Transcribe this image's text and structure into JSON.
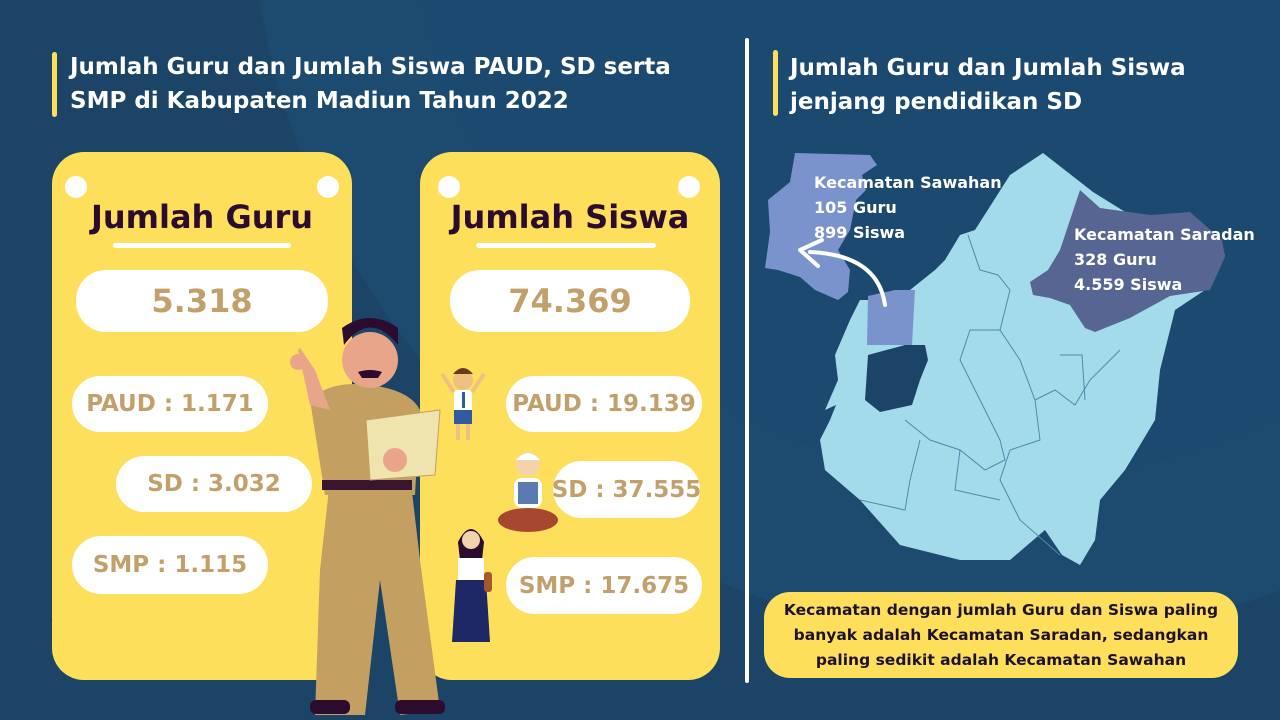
{
  "colors": {
    "background": "#1b4467",
    "card": "#fddf5c",
    "value_text": "#c2a06b",
    "map_region": "#a3dbea",
    "sawahan": "#7b93cc",
    "saradan": "#566591"
  },
  "left": {
    "title_line1": "Jumlah Guru dan Jumlah Siswa PAUD, SD serta",
    "title_line2": "SMP di Kabupaten Madiun Tahun 2022",
    "guru": {
      "title": "Jumlah Guru",
      "total": "5.318",
      "paud": "PAUD : 1.171",
      "sd": "SD : 3.032",
      "smp": "SMP : 1.115"
    },
    "siswa": {
      "title": "Jumlah Siswa",
      "total": "74.369",
      "paud": "PAUD : 19.139",
      "sd": "SD : 37.555",
      "smp": "SMP : 17.675"
    }
  },
  "right": {
    "title_line1": "Jumlah Guru dan Jumlah Siswa",
    "title_line2": "jenjang pendidikan SD",
    "sawahan": {
      "name": "Kecamatan Sawahan",
      "guru": "105 Guru",
      "siswa": "899 Siswa"
    },
    "saradan": {
      "name": "Kecamatan Saradan",
      "guru": "328 Guru",
      "siswa": "4.559 Siswa"
    },
    "note_line1": "Kecamatan dengan jumlah Guru dan Siswa paling",
    "note_line2": "banyak adalah Kecamatan Saradan, sedangkan",
    "note_line3": "paling sedikit adalah Kecamatan Sawahan"
  }
}
